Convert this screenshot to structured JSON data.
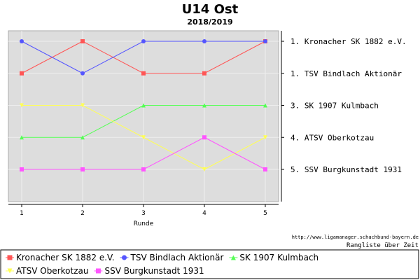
{
  "title": "U14 Ost",
  "subtitle": "2018/2019",
  "chart_data": {
    "type": "line",
    "title": "U14 Ost",
    "subtitle": "2018/2019",
    "xlabel": "Runde",
    "x": [
      1,
      2,
      3,
      4,
      5
    ],
    "ylim": [
      1,
      5
    ],
    "y_inverted": true,
    "grid": true,
    "series": [
      {
        "name": "Kronacher SK 1882 e.V.",
        "color": "#ff5555",
        "marker": "square",
        "values": [
          2,
          1,
          2,
          2,
          1
        ]
      },
      {
        "name": "TSV Bindlach Aktionär",
        "color": "#5555ff",
        "marker": "circle",
        "values": [
          1,
          2,
          1,
          1,
          1
        ]
      },
      {
        "name": "SK 1907 Kulmbach",
        "color": "#55ff55",
        "marker": "triangle",
        "values": [
          4,
          4,
          3,
          3,
          3
        ]
      },
      {
        "name": "ATSV Oberkotzau",
        "color": "#ffff55",
        "marker": "triangle-down",
        "values": [
          3,
          3,
          4,
          5,
          4
        ]
      },
      {
        "name": "SSV Burgkunstadt 1931",
        "color": "#ff55ff",
        "marker": "square",
        "values": [
          5,
          5,
          5,
          4,
          5
        ]
      }
    ],
    "final_ranking": [
      {
        "rank": "1.",
        "name": "Kronacher SK 1882 e.V."
      },
      {
        "rank": "1.",
        "name": "TSV Bindlach Aktionär"
      },
      {
        "rank": "3.",
        "name": "SK 1907 Kulmbach"
      },
      {
        "rank": "4.",
        "name": "ATSV Oberkotzau"
      },
      {
        "rank": "5.",
        "name": "SSV Burgkunstadt 1931"
      }
    ],
    "legend_position": "bottom"
  },
  "source_url": "http://www.ligamanager.schachbund-bayern.de",
  "chart_caption": "Rangliste über Zeit"
}
